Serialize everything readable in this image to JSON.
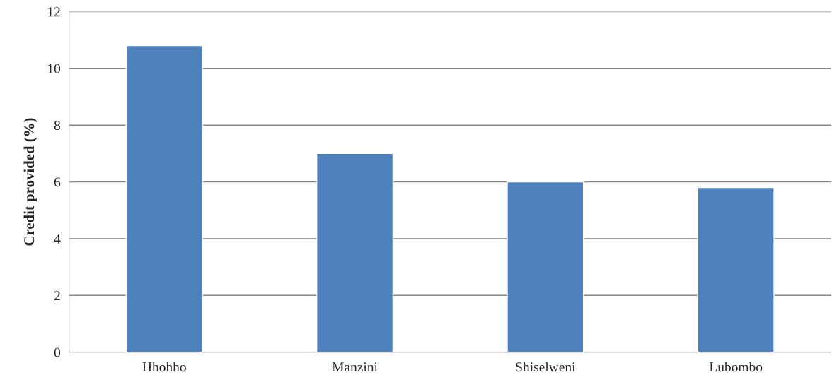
{
  "chart_data": {
    "type": "bar",
    "ylabel": "Credit provided (%)",
    "categories": [
      "Hhohho",
      "Manzini",
      "Shiselweni",
      "Lubombo"
    ],
    "values": [
      10.8,
      7.0,
      6.0,
      5.8
    ],
    "color": "#4f81bd",
    "ylim": [
      0,
      12
    ],
    "yticks": [
      0,
      2,
      4,
      6,
      8,
      10,
      12
    ],
    "grid": "y"
  }
}
